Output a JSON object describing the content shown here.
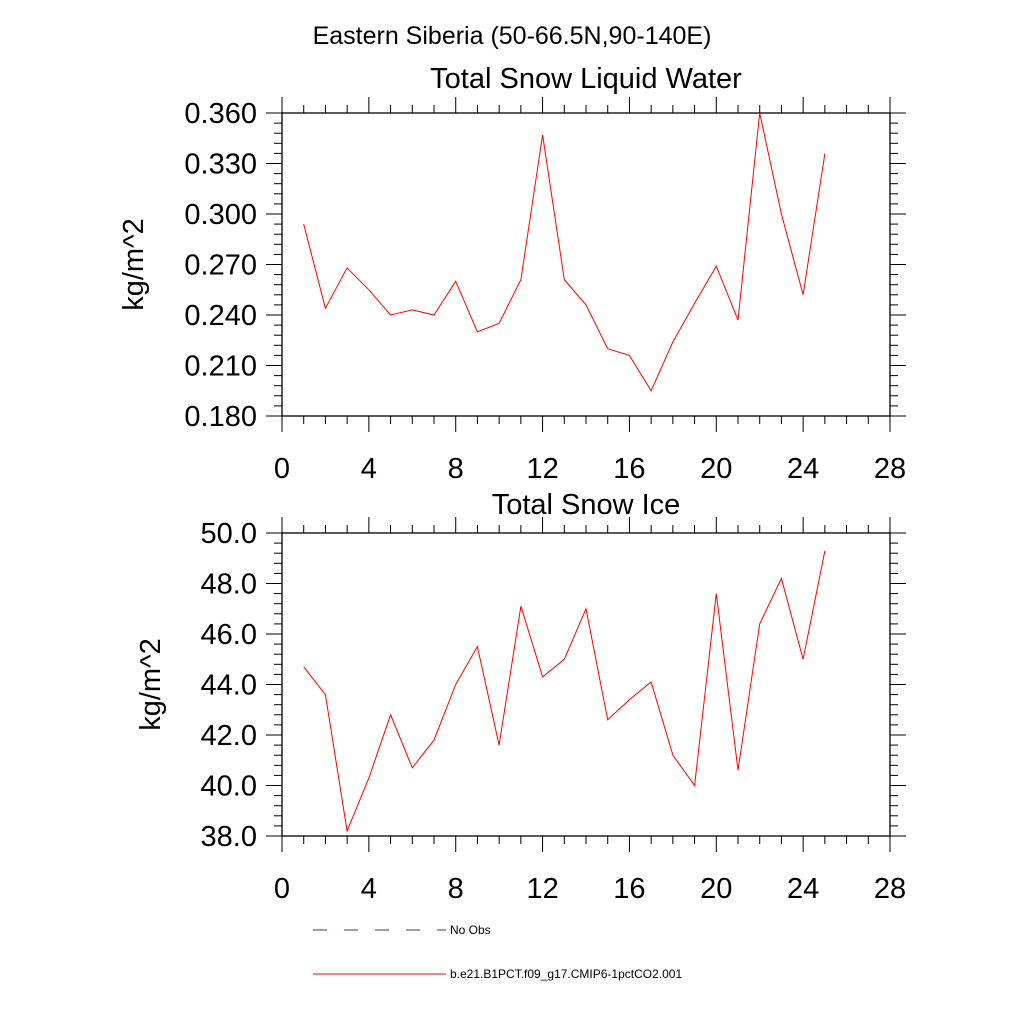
{
  "figure": {
    "suptitle": "Eastern Siberia (50-66.5N,90-140E)"
  },
  "chart_data": [
    {
      "type": "line",
      "title": "Total Snow Liquid Water",
      "xlabel": "",
      "ylabel": "kg/m^2",
      "xlim": [
        0,
        28
      ],
      "ylim": [
        0.18,
        0.36
      ],
      "xticks": [
        "0",
        "4",
        "8",
        "12",
        "16",
        "20",
        "24",
        "28"
      ],
      "yticks": [
        "0.180",
        "0.210",
        "0.240",
        "0.270",
        "0.300",
        "0.330",
        "0.360"
      ],
      "grid": false,
      "x": [
        1,
        2,
        3,
        4,
        5,
        6,
        7,
        8,
        9,
        10,
        11,
        12,
        13,
        14,
        15,
        16,
        17,
        18,
        19,
        20,
        21,
        22,
        23,
        24,
        25
      ],
      "series": [
        {
          "name": "b.e21.B1PCT.f09_g17.CMIP6-1pctCO2.001",
          "color": "#ff0000",
          "values": [
            0.294,
            0.244,
            0.268,
            0.255,
            0.24,
            0.243,
            0.24,
            0.26,
            0.23,
            0.235,
            0.261,
            0.347,
            0.261,
            0.246,
            0.22,
            0.216,
            0.195,
            0.224,
            0.247,
            0.269,
            0.237,
            0.36,
            0.3,
            0.252,
            0.336
          ]
        }
      ]
    },
    {
      "type": "line",
      "title": "Total Snow Ice",
      "xlabel": "",
      "ylabel": "kg/m^2",
      "xlim": [
        0,
        28
      ],
      "ylim": [
        38.0,
        50.0
      ],
      "xticks": [
        "0",
        "4",
        "8",
        "12",
        "16",
        "20",
        "24",
        "28"
      ],
      "yticks": [
        "38.0",
        "40.0",
        "42.0",
        "44.0",
        "46.0",
        "48.0",
        "50.0"
      ],
      "grid": false,
      "x": [
        1,
        2,
        3,
        4,
        5,
        6,
        7,
        8,
        9,
        10,
        11,
        12,
        13,
        14,
        15,
        16,
        17,
        18,
        19,
        20,
        21,
        22,
        23,
        24,
        25
      ],
      "series": [
        {
          "name": "b.e21.B1PCT.f09_g17.CMIP6-1pctCO2.001",
          "color": "#ff0000",
          "values": [
            44.7,
            43.6,
            38.2,
            40.3,
            42.8,
            40.7,
            41.8,
            44.0,
            45.5,
            41.6,
            47.1,
            44.3,
            45.0,
            47.0,
            42.6,
            43.4,
            44.1,
            41.2,
            40.0,
            47.6,
            40.6,
            46.4,
            48.2,
            45.0,
            49.3
          ]
        }
      ]
    }
  ],
  "legend": {
    "placement": "bottom",
    "items": [
      {
        "label": "No Obs",
        "color": "#3a3a7a",
        "style": "dashed"
      },
      {
        "label": "b.e21.B1PCT.f09_g17.CMIP6-1pctCO2.001",
        "color": "#ff0000",
        "style": "solid"
      }
    ]
  }
}
